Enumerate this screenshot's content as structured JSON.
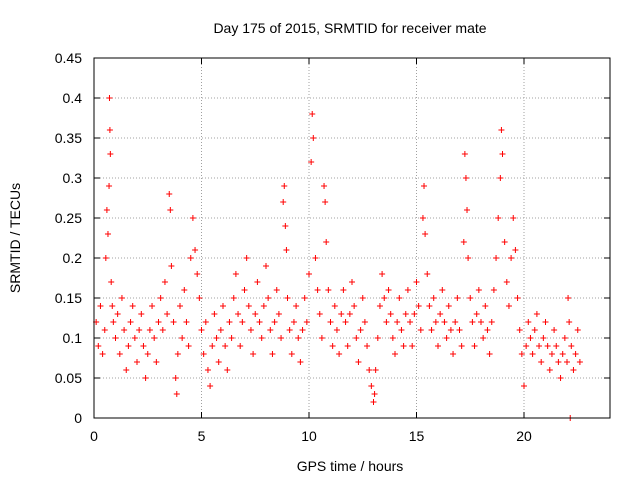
{
  "chart_data": {
    "type": "scatter",
    "title": "Day 175 of 2015, SRMTID for receiver mate",
    "xlabel": "GPS time / hours",
    "ylabel": "SRMTID / TECUs",
    "xlim": [
      0,
      24
    ],
    "ylim": [
      0,
      0.45
    ],
    "xticks": [
      0,
      5,
      10,
      15,
      20
    ],
    "xtick_labels": [
      "0",
      "5",
      "10",
      "15",
      "20"
    ],
    "yticks": [
      0,
      0.05,
      0.1,
      0.15,
      0.2,
      0.25,
      0.3,
      0.35,
      0.4,
      0.45
    ],
    "ytick_labels": [
      "0",
      "0.05",
      "0.1",
      "0.15",
      "0.2",
      "0.25",
      "0.3",
      "0.35",
      "0.4",
      "0.45"
    ],
    "grid": true,
    "marker": "plus",
    "color": "#ff0000",
    "series": [
      {
        "name": "SRMTID",
        "points": [
          [
            0.1,
            0.12
          ],
          [
            0.2,
            0.09
          ],
          [
            0.3,
            0.14
          ],
          [
            0.4,
            0.08
          ],
          [
            0.5,
            0.11
          ],
          [
            0.55,
            0.2
          ],
          [
            0.6,
            0.26
          ],
          [
            0.65,
            0.23
          ],
          [
            0.7,
            0.29
          ],
          [
            0.72,
            0.4
          ],
          [
            0.74,
            0.36
          ],
          [
            0.76,
            0.33
          ],
          [
            0.8,
            0.17
          ],
          [
            0.85,
            0.14
          ],
          [
            0.9,
            0.12
          ],
          [
            1.0,
            0.1
          ],
          [
            1.1,
            0.13
          ],
          [
            1.2,
            0.08
          ],
          [
            1.3,
            0.15
          ],
          [
            1.4,
            0.11
          ],
          [
            1.5,
            0.06
          ],
          [
            1.6,
            0.09
          ],
          [
            1.7,
            0.12
          ],
          [
            1.8,
            0.14
          ],
          [
            1.9,
            0.1
          ],
          [
            2.0,
            0.07
          ],
          [
            2.1,
            0.11
          ],
          [
            2.2,
            0.13
          ],
          [
            2.3,
            0.09
          ],
          [
            2.4,
            0.05
          ],
          [
            2.5,
            0.08
          ],
          [
            2.6,
            0.11
          ],
          [
            2.7,
            0.14
          ],
          [
            2.8,
            0.1
          ],
          [
            2.9,
            0.07
          ],
          [
            3.0,
            0.12
          ],
          [
            3.1,
            0.15
          ],
          [
            3.2,
            0.11
          ],
          [
            3.3,
            0.17
          ],
          [
            3.4,
            0.13
          ],
          [
            3.5,
            0.28
          ],
          [
            3.55,
            0.26
          ],
          [
            3.6,
            0.19
          ],
          [
            3.7,
            0.12
          ],
          [
            3.8,
            0.05
          ],
          [
            3.85,
            0.03
          ],
          [
            3.9,
            0.08
          ],
          [
            4.0,
            0.14
          ],
          [
            4.1,
            0.1
          ],
          [
            4.2,
            0.16
          ],
          [
            4.3,
            0.12
          ],
          [
            4.4,
            0.09
          ],
          [
            4.5,
            0.2
          ],
          [
            4.6,
            0.25
          ],
          [
            4.7,
            0.21
          ],
          [
            4.8,
            0.18
          ],
          [
            4.9,
            0.15
          ],
          [
            5.0,
            0.11
          ],
          [
            5.1,
            0.08
          ],
          [
            5.2,
            0.12
          ],
          [
            5.3,
            0.06
          ],
          [
            5.4,
            0.04
          ],
          [
            5.5,
            0.09
          ],
          [
            5.6,
            0.13
          ],
          [
            5.7,
            0.1
          ],
          [
            5.8,
            0.07
          ],
          [
            5.9,
            0.11
          ],
          [
            6.0,
            0.14
          ],
          [
            6.1,
            0.09
          ],
          [
            6.2,
            0.06
          ],
          [
            6.3,
            0.12
          ],
          [
            6.4,
            0.1
          ],
          [
            6.5,
            0.15
          ],
          [
            6.6,
            0.18
          ],
          [
            6.7,
            0.13
          ],
          [
            6.8,
            0.09
          ],
          [
            6.9,
            0.12
          ],
          [
            7.0,
            0.16
          ],
          [
            7.1,
            0.2
          ],
          [
            7.2,
            0.14
          ],
          [
            7.3,
            0.11
          ],
          [
            7.4,
            0.08
          ],
          [
            7.5,
            0.13
          ],
          [
            7.6,
            0.17
          ],
          [
            7.7,
            0.12
          ],
          [
            7.8,
            0.1
          ],
          [
            7.9,
            0.14
          ],
          [
            8.0,
            0.19
          ],
          [
            8.1,
            0.15
          ],
          [
            8.2,
            0.11
          ],
          [
            8.3,
            0.08
          ],
          [
            8.4,
            0.12
          ],
          [
            8.5,
            0.16
          ],
          [
            8.6,
            0.13
          ],
          [
            8.7,
            0.1
          ],
          [
            8.8,
            0.27
          ],
          [
            8.85,
            0.29
          ],
          [
            8.9,
            0.24
          ],
          [
            8.95,
            0.21
          ],
          [
            9.0,
            0.15
          ],
          [
            9.1,
            0.11
          ],
          [
            9.2,
            0.08
          ],
          [
            9.3,
            0.12
          ],
          [
            9.4,
            0.14
          ],
          [
            9.5,
            0.1
          ],
          [
            9.6,
            0.07
          ],
          [
            9.7,
            0.11
          ],
          [
            9.8,
            0.15
          ],
          [
            9.9,
            0.12
          ],
          [
            10.0,
            0.18
          ],
          [
            10.1,
            0.32
          ],
          [
            10.15,
            0.38
          ],
          [
            10.2,
            0.35
          ],
          [
            10.3,
            0.2
          ],
          [
            10.4,
            0.16
          ],
          [
            10.5,
            0.13
          ],
          [
            10.6,
            0.1
          ],
          [
            10.7,
            0.29
          ],
          [
            10.75,
            0.27
          ],
          [
            10.8,
            0.22
          ],
          [
            10.9,
            0.16
          ],
          [
            11.0,
            0.12
          ],
          [
            11.1,
            0.09
          ],
          [
            11.2,
            0.14
          ],
          [
            11.3,
            0.11
          ],
          [
            11.4,
            0.08
          ],
          [
            11.5,
            0.13
          ],
          [
            11.6,
            0.16
          ],
          [
            11.7,
            0.12
          ],
          [
            11.8,
            0.09
          ],
          [
            11.9,
            0.13
          ],
          [
            12.0,
            0.17
          ],
          [
            12.1,
            0.14
          ],
          [
            12.2,
            0.1
          ],
          [
            12.3,
            0.07
          ],
          [
            12.4,
            0.11
          ],
          [
            12.5,
            0.15
          ],
          [
            12.6,
            0.12
          ],
          [
            12.7,
            0.09
          ],
          [
            12.8,
            0.06
          ],
          [
            12.9,
            0.04
          ],
          [
            13.0,
            0.02
          ],
          [
            13.05,
            0.03
          ],
          [
            13.1,
            0.06
          ],
          [
            13.2,
            0.1
          ],
          [
            13.3,
            0.14
          ],
          [
            13.4,
            0.18
          ],
          [
            13.5,
            0.15
          ],
          [
            13.6,
            0.12
          ],
          [
            13.7,
            0.16
          ],
          [
            13.8,
            0.13
          ],
          [
            13.9,
            0.1
          ],
          [
            14.0,
            0.08
          ],
          [
            14.1,
            0.12
          ],
          [
            14.2,
            0.15
          ],
          [
            14.3,
            0.11
          ],
          [
            14.4,
            0.09
          ],
          [
            14.5,
            0.13
          ],
          [
            14.6,
            0.16
          ],
          [
            14.7,
            0.12
          ],
          [
            14.8,
            0.09
          ],
          [
            14.9,
            0.13
          ],
          [
            15.0,
            0.17
          ],
          [
            15.1,
            0.14
          ],
          [
            15.2,
            0.11
          ],
          [
            15.3,
            0.25
          ],
          [
            15.35,
            0.29
          ],
          [
            15.4,
            0.23
          ],
          [
            15.5,
            0.18
          ],
          [
            15.6,
            0.14
          ],
          [
            15.7,
            0.11
          ],
          [
            15.8,
            0.15
          ],
          [
            15.9,
            0.12
          ],
          [
            16.0,
            0.09
          ],
          [
            16.1,
            0.13
          ],
          [
            16.2,
            0.16
          ],
          [
            16.3,
            0.12
          ],
          [
            16.4,
            0.1
          ],
          [
            16.5,
            0.14
          ],
          [
            16.6,
            0.11
          ],
          [
            16.7,
            0.08
          ],
          [
            16.8,
            0.12
          ],
          [
            16.9,
            0.15
          ],
          [
            17.0,
            0.11
          ],
          [
            17.1,
            0.09
          ],
          [
            17.2,
            0.22
          ],
          [
            17.25,
            0.33
          ],
          [
            17.3,
            0.3
          ],
          [
            17.35,
            0.26
          ],
          [
            17.4,
            0.2
          ],
          [
            17.5,
            0.15
          ],
          [
            17.6,
            0.12
          ],
          [
            17.7,
            0.09
          ],
          [
            17.8,
            0.13
          ],
          [
            17.9,
            0.16
          ],
          [
            18.0,
            0.12
          ],
          [
            18.1,
            0.1
          ],
          [
            18.2,
            0.14
          ],
          [
            18.3,
            0.11
          ],
          [
            18.4,
            0.08
          ],
          [
            18.5,
            0.12
          ],
          [
            18.6,
            0.16
          ],
          [
            18.7,
            0.2
          ],
          [
            18.8,
            0.25
          ],
          [
            18.9,
            0.3
          ],
          [
            18.95,
            0.36
          ],
          [
            19.0,
            0.33
          ],
          [
            19.1,
            0.22
          ],
          [
            19.2,
            0.17
          ],
          [
            19.3,
            0.14
          ],
          [
            19.4,
            0.2
          ],
          [
            19.5,
            0.25
          ],
          [
            19.6,
            0.21
          ],
          [
            19.7,
            0.15
          ],
          [
            19.8,
            0.11
          ],
          [
            19.9,
            0.08
          ],
          [
            20.0,
            0.04
          ],
          [
            20.1,
            0.09
          ],
          [
            20.2,
            0.12
          ],
          [
            20.3,
            0.1
          ],
          [
            20.4,
            0.08
          ],
          [
            20.5,
            0.11
          ],
          [
            20.6,
            0.13
          ],
          [
            20.7,
            0.09
          ],
          [
            20.8,
            0.07
          ],
          [
            20.9,
            0.1
          ],
          [
            21.0,
            0.12
          ],
          [
            21.1,
            0.09
          ],
          [
            21.2,
            0.06
          ],
          [
            21.3,
            0.08
          ],
          [
            21.4,
            0.11
          ],
          [
            21.5,
            0.09
          ],
          [
            21.6,
            0.07
          ],
          [
            21.7,
            0.05
          ],
          [
            21.8,
            0.08
          ],
          [
            21.9,
            0.1
          ],
          [
            22.0,
            0.07
          ],
          [
            22.05,
            0.15
          ],
          [
            22.1,
            0.12
          ],
          [
            22.15,
            0.0
          ],
          [
            22.2,
            0.09
          ],
          [
            22.3,
            0.06
          ],
          [
            22.4,
            0.08
          ],
          [
            22.5,
            0.11
          ],
          [
            22.6,
            0.07
          ]
        ]
      }
    ]
  }
}
